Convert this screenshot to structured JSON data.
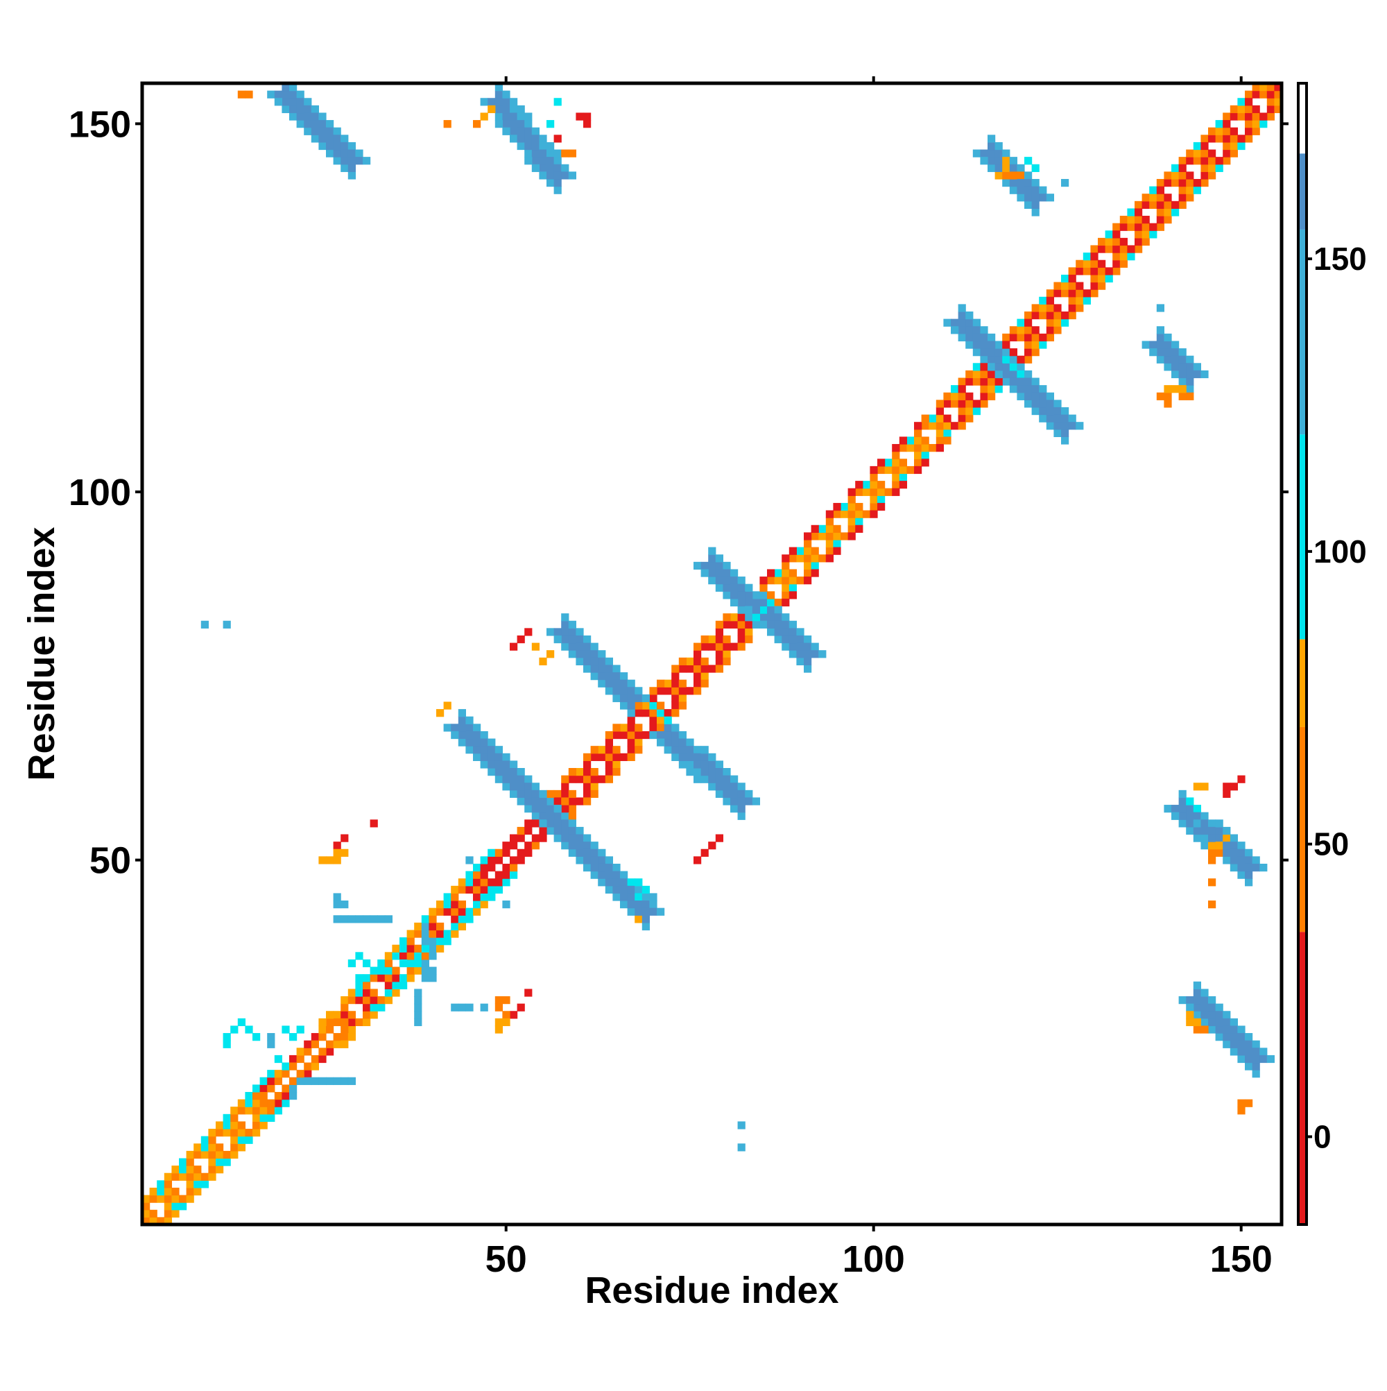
{
  "chart_data": {
    "type": "heatmap",
    "title": "",
    "xlabel": "Residue index",
    "ylabel": "Residue index",
    "xlim": [
      1,
      155
    ],
    "ylim": [
      1,
      155
    ],
    "x_ticks": [
      50,
      100,
      150
    ],
    "y_ticks": [
      50,
      100,
      150
    ],
    "grid": false,
    "colorbar": {
      "position": "right",
      "range": [
        -15,
        180
      ],
      "ticks": [
        0,
        50,
        100,
        150
      ],
      "bands": [
        {
          "from": -15,
          "to": 35,
          "color": "#e41a1c"
        },
        {
          "from": 35,
          "to": 70,
          "color": "#ff7f00"
        },
        {
          "from": 70,
          "to": 85,
          "color": "#ffa500"
        },
        {
          "from": 85,
          "to": 120,
          "color": "#00e5ee"
        },
        {
          "from": 120,
          "to": 155,
          "color": "#3fb0d8"
        },
        {
          "from": 155,
          "to": 168,
          "color": "#4f8fc8"
        },
        {
          "from": 168,
          "to": 180,
          "color": "#ffffff"
        }
      ]
    },
    "colors": {
      "red": "#e41a1c",
      "orange": "#ff7f00",
      "amber": "#ffa500",
      "cyan": "#00e5ee",
      "skyblue": "#3fb0d8",
      "steelblue": "#4f8fc8",
      "white": "#ffffff"
    },
    "diagonal_band": [
      {
        "from": 1,
        "to": 18,
        "pattern": [
          "amber",
          "orange",
          "white",
          "orange",
          "amber",
          "cyan",
          "cyan"
        ]
      },
      {
        "from": 18,
        "to": 28,
        "pattern": [
          "red",
          "orange",
          "white",
          "orange",
          "amber"
        ]
      },
      {
        "from": 28,
        "to": 48,
        "pattern": [
          "amber",
          "orange",
          "white",
          "orange",
          "red",
          "cyan",
          "cyan"
        ]
      },
      {
        "from": 48,
        "to": 58,
        "pattern": [
          "red",
          "red",
          "white",
          "red",
          "orange"
        ]
      },
      {
        "from": 58,
        "to": 84,
        "pattern": [
          "orange",
          "red",
          "white",
          "orange",
          "red",
          "amber"
        ]
      },
      {
        "from": 84,
        "to": 110,
        "pattern": [
          "red",
          "orange",
          "white",
          "orange",
          "amber",
          "cyan"
        ]
      },
      {
        "from": 110,
        "to": 156,
        "pattern": [
          "orange",
          "red",
          "white",
          "red",
          "orange",
          "amber",
          "cyan"
        ]
      }
    ],
    "regions": [
      {
        "kind": "antidiagonal",
        "x1": 20,
        "x2": 29,
        "y1": 154,
        "y2": 145,
        "w": 2,
        "core": "steelblue",
        "edge": "skyblue"
      },
      {
        "kind": "antidiagonal",
        "x1": 49,
        "x2": 57,
        "y1": 153,
        "y2": 143,
        "w": 2,
        "core": "steelblue",
        "edge": "skyblue"
      },
      {
        "kind": "antidiagonal",
        "x1": 116,
        "x2": 122,
        "y1": 146,
        "y2": 140,
        "w": 2,
        "core": "steelblue",
        "edge": "skyblue"
      },
      {
        "kind": "antidiagonal",
        "x1": 112,
        "x2": 126,
        "y1": 123,
        "y2": 109,
        "w": 2,
        "core": "steelblue",
        "edge": "skyblue"
      },
      {
        "kind": "antidiagonal",
        "x1": 139,
        "x2": 143,
        "y1": 120,
        "y2": 116,
        "w": 2,
        "core": "steelblue",
        "edge": "skyblue"
      },
      {
        "kind": "antidiagonal",
        "x1": 78,
        "x2": 91,
        "y1": 90,
        "y2": 78,
        "w": 2,
        "core": "steelblue",
        "edge": "skyblue"
      },
      {
        "kind": "antidiagonal",
        "x1": 58,
        "x2": 67,
        "y1": 81,
        "y2": 72,
        "w": 2,
        "core": "steelblue",
        "edge": "skyblue"
      },
      {
        "kind": "antidiagonal",
        "x1": 44,
        "x2": 69,
        "y1": 68,
        "y2": 43,
        "w": 2,
        "core": "steelblue",
        "edge": "skyblue"
      },
      {
        "kind": "antidiagonal",
        "x1": 72,
        "x2": 82,
        "y1": 67,
        "y2": 58,
        "w": 2,
        "core": "steelblue",
        "edge": "skyblue"
      },
      {
        "kind": "antidiagonal",
        "x1": 142,
        "x2": 151,
        "y1": 57,
        "y2": 49,
        "w": 2,
        "core": "steelblue",
        "edge": "skyblue"
      },
      {
        "kind": "antidiagonal",
        "x1": 144,
        "x2": 152,
        "y1": 31,
        "y2": 23,
        "w": 2,
        "core": "steelblue",
        "edge": "skyblue"
      },
      {
        "kind": "cells",
        "color": "cyan",
        "cells": [
          [
            13,
            27
          ],
          [
            14,
            28
          ],
          [
            15,
            27
          ],
          [
            16,
            26
          ],
          [
            12,
            26
          ],
          [
            12,
            25
          ],
          [
            19,
            23
          ],
          [
            20,
            22
          ],
          [
            36,
            36
          ],
          [
            37,
            36
          ],
          [
            38,
            37
          ],
          [
            39,
            38
          ],
          [
            40,
            38
          ],
          [
            41,
            39
          ],
          [
            42,
            40
          ],
          [
            43,
            41
          ],
          [
            44,
            42
          ],
          [
            45,
            43
          ],
          [
            46,
            44
          ],
          [
            47,
            45
          ],
          [
            48,
            46
          ],
          [
            34,
            32
          ],
          [
            35,
            33
          ],
          [
            36,
            34
          ],
          [
            29,
            36
          ],
          [
            30,
            37
          ],
          [
            31,
            36
          ],
          [
            34,
            35
          ],
          [
            35,
            37
          ],
          [
            30,
            34
          ],
          [
            31,
            34
          ],
          [
            32,
            35
          ],
          [
            20,
            27
          ],
          [
            21,
            26
          ],
          [
            22,
            27
          ],
          [
            57,
            153
          ],
          [
            56,
            150
          ],
          [
            84,
            83
          ],
          [
            85,
            84
          ],
          [
            86,
            85
          ],
          [
            118,
            118
          ],
          [
            119,
            117
          ],
          [
            120,
            116
          ],
          [
            70,
            71
          ],
          [
            71,
            70
          ],
          [
            72,
            69
          ],
          [
            67,
            47
          ],
          [
            68,
            47
          ],
          [
            69,
            46
          ],
          [
            68,
            45
          ],
          [
            143,
            58
          ],
          [
            144,
            57
          ],
          [
            121,
            145
          ],
          [
            122,
            144
          ]
        ]
      },
      {
        "kind": "cells",
        "color": "skyblue",
        "cells": [
          [
            21,
            18
          ],
          [
            21,
            19
          ],
          [
            22,
            20
          ],
          [
            23,
            20
          ],
          [
            24,
            20
          ],
          [
            25,
            20
          ],
          [
            26,
            20
          ],
          [
            27,
            20
          ],
          [
            28,
            20
          ],
          [
            29,
            20
          ],
          [
            18,
            26
          ],
          [
            18,
            25
          ],
          [
            27,
            45
          ],
          [
            27,
            44
          ],
          [
            28,
            44
          ],
          [
            27,
            42
          ],
          [
            28,
            42
          ],
          [
            29,
            42
          ],
          [
            30,
            42
          ],
          [
            31,
            42
          ],
          [
            32,
            42
          ],
          [
            33,
            42
          ],
          [
            34,
            42
          ],
          [
            39,
            41
          ],
          [
            39,
            40
          ],
          [
            39,
            39
          ],
          [
            40,
            39
          ],
          [
            40,
            38
          ],
          [
            40,
            37
          ],
          [
            39,
            36
          ],
          [
            39,
            35
          ],
          [
            40,
            35
          ],
          [
            39,
            34
          ],
          [
            40,
            34
          ],
          [
            38,
            28
          ],
          [
            38,
            29
          ],
          [
            38,
            30
          ],
          [
            38,
            31
          ],
          [
            38,
            32
          ],
          [
            43,
            30
          ],
          [
            44,
            30
          ],
          [
            45,
            30
          ],
          [
            47,
            30
          ],
          [
            45,
            50
          ],
          [
            50,
            44
          ],
          [
            69,
            45
          ],
          [
            70,
            45
          ],
          [
            9,
            82
          ],
          [
            12,
            82
          ],
          [
            82,
            14
          ],
          [
            82,
            11
          ],
          [
            126,
            142
          ],
          [
            139,
            125
          ],
          [
            144,
            55
          ],
          [
            146,
            55
          ],
          [
            148,
            54
          ]
        ]
      },
      {
        "kind": "cells",
        "color": "red",
        "cells": [
          [
            60,
            151
          ],
          [
            61,
            151
          ],
          [
            61,
            150
          ],
          [
            57,
            148
          ],
          [
            28,
            53
          ],
          [
            27,
            52
          ],
          [
            32,
            55
          ],
          [
            52,
            30
          ],
          [
            51,
            29
          ],
          [
            53,
            32
          ],
          [
            51,
            79
          ],
          [
            52,
            80
          ],
          [
            53,
            81
          ],
          [
            76,
            50
          ],
          [
            77,
            51
          ],
          [
            78,
            52
          ],
          [
            79,
            53
          ],
          [
            148,
            59
          ],
          [
            149,
            60
          ],
          [
            150,
            61
          ],
          [
            148,
            60
          ]
        ]
      },
      {
        "kind": "cells",
        "color": "orange",
        "cells": [
          [
            14,
            154
          ],
          [
            15,
            154
          ],
          [
            42,
            150
          ],
          [
            46,
            150
          ],
          [
            58,
            146
          ],
          [
            59,
            146
          ],
          [
            119,
            143
          ],
          [
            118,
            143
          ],
          [
            120,
            143
          ],
          [
            142,
            113
          ],
          [
            143,
            113
          ],
          [
            140,
            113
          ],
          [
            139,
            113
          ],
          [
            140,
            112
          ],
          [
            146,
            51
          ],
          [
            146,
            50
          ],
          [
            147,
            51
          ],
          [
            146,
            47
          ],
          [
            146,
            44
          ],
          [
            144,
            27
          ],
          [
            145,
            27
          ],
          [
            150,
            17
          ],
          [
            151,
            17
          ],
          [
            150,
            16
          ],
          [
            49,
            31
          ],
          [
            50,
            31
          ],
          [
            49,
            30
          ],
          [
            50,
            29
          ]
        ]
      },
      {
        "kind": "cells",
        "color": "amber",
        "cells": [
          [
            47,
            151
          ],
          [
            48,
            152
          ],
          [
            118,
            145
          ],
          [
            118,
            144
          ],
          [
            117,
            143
          ],
          [
            140,
            114
          ],
          [
            141,
            114
          ],
          [
            142,
            114
          ],
          [
            144,
            60
          ],
          [
            145,
            60
          ],
          [
            146,
            52
          ],
          [
            147,
            52
          ],
          [
            148,
            53
          ],
          [
            143,
            28
          ],
          [
            144,
            28
          ],
          [
            143,
            29
          ],
          [
            41,
            70
          ],
          [
            42,
            71
          ],
          [
            25,
            50
          ],
          [
            26,
            50
          ],
          [
            27,
            50
          ],
          [
            28,
            51
          ],
          [
            27,
            51
          ],
          [
            68,
            42
          ],
          [
            49,
            27
          ],
          [
            49,
            28
          ],
          [
            50,
            28
          ],
          [
            56,
            78
          ],
          [
            55,
            77
          ],
          [
            54,
            79
          ]
        ]
      }
    ]
  }
}
